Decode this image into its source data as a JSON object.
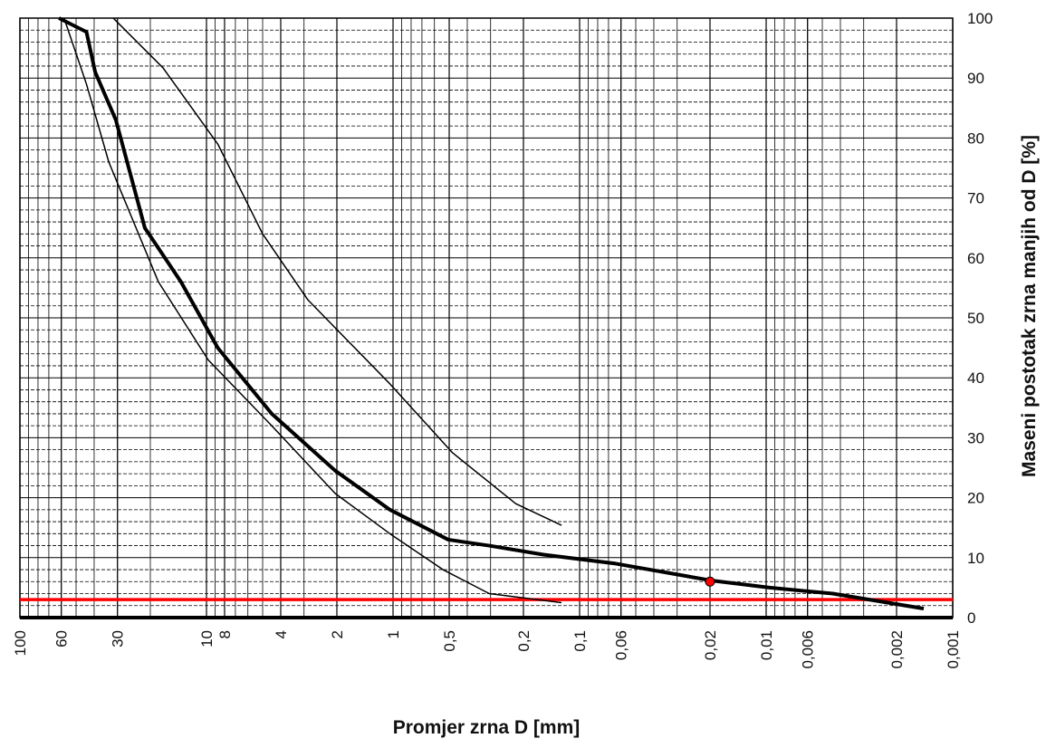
{
  "chart_data": {
    "type": "line",
    "xlabel": "Promjer zrna D [mm]",
    "ylabel": "Maseni postotak zrna manjih od D [%]",
    "xscale": "log",
    "grid": true,
    "xlim": [
      100,
      0.001
    ],
    "ylim": [
      0,
      100
    ],
    "xticks": [
      100,
      60,
      30,
      10,
      8,
      4,
      2,
      1,
      {
        "value": 0.5,
        "label": "0,5"
      },
      {
        "value": 0.2,
        "label": "0,2"
      },
      {
        "value": 0.1,
        "label": "0,1"
      },
      {
        "value": 0.06,
        "label": "0,06"
      },
      {
        "value": 0.02,
        "label": "0,02"
      },
      {
        "value": 0.01,
        "label": "0,01"
      },
      {
        "value": 0.006,
        "label": "0,006"
      },
      {
        "value": 0.002,
        "label": "0,002"
      },
      {
        "value": 0.001,
        "label": "0,001"
      }
    ],
    "yticks": [
      0,
      10,
      20,
      30,
      40,
      50,
      60,
      70,
      80,
      90,
      100
    ],
    "series": [
      {
        "color": "#000000",
        "width": 4,
        "x": [
          61.8,
          44,
          39.5,
          30.6,
          21.4,
          13.7,
          8.7,
          4.47,
          2.04,
          1.04,
          0.506,
          0.305,
          0.156,
          0.064,
          0.0198,
          0.0096,
          0.0044,
          0.00143
        ],
        "values": [
          100,
          97.7,
          91,
          83,
          65,
          56,
          45,
          34,
          24.5,
          18,
          13,
          12,
          10.5,
          9,
          6.2,
          5,
          4,
          1.5
        ]
      },
      {
        "color": "#000000",
        "width": 1.5,
        "x": [
          31.6,
          17.1,
          8.7,
          5.0,
          2.86,
          1.04,
          0.48,
          0.22,
          0.125
        ],
        "values": [
          100,
          91.7,
          79,
          64,
          53,
          39,
          27.5,
          19,
          15.4
        ]
      },
      {
        "color": "#000000",
        "width": 1.5,
        "x": [
          58,
          44,
          33.4,
          18.1,
          9.8,
          4.47,
          2.04,
          1.04,
          0.54,
          0.305,
          0.125
        ],
        "values": [
          100,
          89,
          76,
          56,
          43,
          32,
          20.7,
          14,
          8,
          4,
          2.5
        ]
      }
    ],
    "reference_lines": [
      {
        "value": 3,
        "color": "#ff0000"
      }
    ],
    "points": [
      {
        "x": 0.02,
        "y": 6,
        "color": "#ff0000"
      }
    ]
  }
}
